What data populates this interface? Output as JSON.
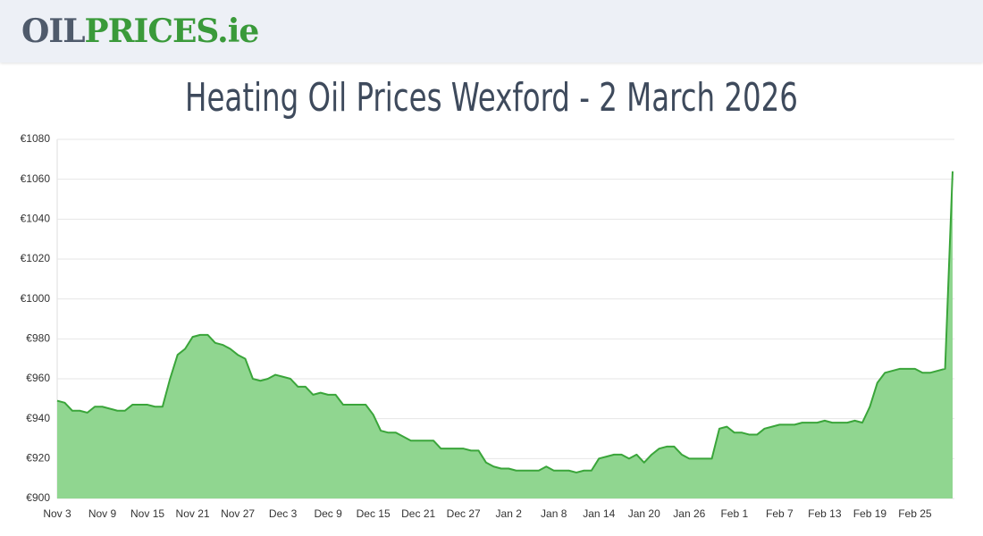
{
  "header": {
    "logo": [
      "OIL",
      "PRICES",
      ".ie"
    ]
  },
  "chart_data": {
    "type": "area",
    "title": "Heating Oil Prices Wexford - 2 March 2026",
    "categories": [
      "Nov 3",
      null,
      null,
      null,
      null,
      null,
      "Nov 9",
      null,
      null,
      null,
      null,
      null,
      "Nov 15",
      null,
      null,
      null,
      null,
      null,
      "Nov 21",
      null,
      null,
      null,
      null,
      null,
      "Nov 27",
      null,
      null,
      null,
      null,
      null,
      "Dec 3",
      null,
      null,
      null,
      null,
      null,
      "Dec 9",
      null,
      null,
      null,
      null,
      null,
      "Dec 15",
      null,
      null,
      null,
      null,
      null,
      "Dec 21",
      null,
      null,
      null,
      null,
      null,
      "Dec 27",
      null,
      null,
      null,
      null,
      null,
      "Jan 2",
      null,
      null,
      null,
      null,
      null,
      "Jan 8",
      null,
      null,
      null,
      null,
      null,
      "Jan 14",
      null,
      null,
      null,
      null,
      null,
      "Jan 20",
      null,
      null,
      null,
      null,
      null,
      "Jan 26",
      null,
      null,
      null,
      null,
      null,
      "Feb 1",
      null,
      null,
      null,
      null,
      null,
      "Feb 7",
      null,
      null,
      null,
      null,
      null,
      "Feb 13",
      null,
      null,
      null,
      null,
      null,
      "Feb 19",
      null,
      null,
      null,
      null,
      null,
      "Feb 25",
      null,
      null,
      null,
      null,
      null
    ],
    "values": [
      949,
      948,
      944,
      944,
      943,
      946,
      946,
      945,
      944,
      944,
      947,
      947,
      947,
      946,
      946,
      960,
      972,
      975,
      981,
      982,
      982,
      978,
      977,
      975,
      972,
      970,
      960,
      959,
      960,
      962,
      961,
      960,
      956,
      956,
      952,
      953,
      952,
      952,
      947,
      947,
      947,
      947,
      942,
      934,
      933,
      933,
      931,
      929,
      929,
      929,
      929,
      925,
      925,
      925,
      925,
      924,
      924,
      918,
      916,
      915,
      915,
      914,
      914,
      914,
      914,
      916,
      914,
      914,
      914,
      913,
      914,
      914,
      920,
      921,
      922,
      922,
      920,
      922,
      918,
      922,
      925,
      926,
      926,
      922,
      920,
      920,
      920,
      920,
      935,
      936,
      933,
      933,
      932,
      932,
      935,
      936,
      937,
      937,
      937,
      938,
      938,
      938,
      939,
      938,
      938,
      938,
      939,
      938,
      946,
      958,
      963,
      964,
      965,
      965,
      965,
      963,
      963,
      964,
      965,
      1064
    ],
    "color": "#3aa53a",
    "fill": "#90d690",
    "ylim": [
      900,
      1080
    ],
    "yticks": [
      {
        "value": 900,
        "label": "€900"
      },
      {
        "value": 920,
        "label": "€920"
      },
      {
        "value": 940,
        "label": "€940"
      },
      {
        "value": 960,
        "label": "€960"
      },
      {
        "value": 980,
        "label": "€980"
      },
      {
        "value": 1000,
        "label": "€1000"
      },
      {
        "value": 1020,
        "label": "€1020"
      },
      {
        "value": 1040,
        "label": "€1040"
      },
      {
        "value": 1060,
        "label": "€1060"
      },
      {
        "value": 1080,
        "label": "€1080"
      }
    ],
    "grid": true
  }
}
